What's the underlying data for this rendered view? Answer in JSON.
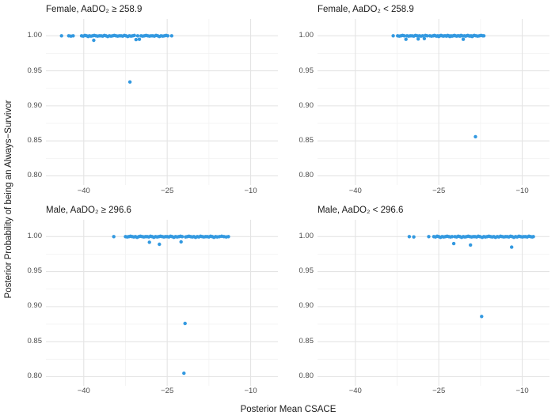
{
  "chart_data": {
    "type": "scatter",
    "layout": "facet-grid-2x2",
    "point_color": "#3399e0",
    "point_radius": 2.2,
    "grid_major_color": "#e4e4e4",
    "grid_minor_color": "#f2f2f2",
    "x_axis": {
      "title": "Posterior Mean CSACE",
      "range": [
        -46.8,
        -5.1
      ],
      "ticks": [
        -40,
        -25,
        -10
      ],
      "tick_labels": [
        "−40",
        "−25",
        "−10"
      ],
      "minor_ticks": [
        -32.5,
        -17.5
      ]
    },
    "y_axis": {
      "title": "Posterior Probability of being an Always−Survivor",
      "range": [
        0.787,
        1.024
      ],
      "ticks": [
        1.0,
        0.95,
        0.9,
        0.85,
        0.8
      ],
      "tick_labels": [
        "1.00",
        "0.95",
        "0.90",
        "0.85",
        "0.80"
      ],
      "minor_ticks": [
        0.975,
        0.925,
        0.875,
        0.825
      ]
    },
    "panels": [
      {
        "title": "Female, AaDO₂ ≥ 258.9",
        "points": [
          [
            -44.0,
            1.0
          ],
          [
            -42.7,
            1.0
          ],
          [
            -42.3,
            0.9995
          ],
          [
            -41.9,
            1.0
          ],
          [
            -40.4,
            1.0
          ],
          [
            -40.1,
            0.9995
          ],
          [
            -39.8,
            1.0005
          ],
          [
            -39.5,
            1.0
          ],
          [
            -39.2,
            0.999
          ],
          [
            -39.0,
            1.0
          ],
          [
            -38.7,
            0.9995
          ],
          [
            -38.4,
            1.0
          ],
          [
            -38.2,
            0.9935
          ],
          [
            -38.1,
            1.0005
          ],
          [
            -37.8,
            1.0
          ],
          [
            -37.5,
            0.9995
          ],
          [
            -37.2,
            1.0
          ],
          [
            -36.9,
            1.0
          ],
          [
            -36.6,
            0.9995
          ],
          [
            -36.3,
            1.0005
          ],
          [
            -36.0,
            1.0
          ],
          [
            -35.7,
            0.999
          ],
          [
            -35.4,
            1.0
          ],
          [
            -35.1,
            0.9995
          ],
          [
            -34.8,
            1.0
          ],
          [
            -34.5,
            1.0005
          ],
          [
            -34.2,
            1.0
          ],
          [
            -33.9,
            0.9995
          ],
          [
            -33.6,
            1.0
          ],
          [
            -33.3,
            1.0
          ],
          [
            -33.0,
            0.9995
          ],
          [
            -32.7,
            1.0005
          ],
          [
            -32.4,
            1.0
          ],
          [
            -32.1,
            0.999
          ],
          [
            -31.8,
            1.0
          ],
          [
            -31.7,
            0.934
          ],
          [
            -31.5,
            0.9995
          ],
          [
            -31.2,
            1.0
          ],
          [
            -30.9,
            1.0005
          ],
          [
            -30.6,
            0.9945
          ],
          [
            -30.3,
            1.0
          ],
          [
            -30.0,
            0.995
          ],
          [
            -29.7,
            1.0
          ],
          [
            -29.4,
            0.9995
          ],
          [
            -29.1,
            1.0
          ],
          [
            -28.8,
            1.0005
          ],
          [
            -28.5,
            1.0
          ],
          [
            -28.2,
            0.9995
          ],
          [
            -27.9,
            1.0
          ],
          [
            -27.6,
            1.0
          ],
          [
            -27.3,
            0.9995
          ],
          [
            -27.0,
            1.0005
          ],
          [
            -26.7,
            1.0
          ],
          [
            -26.4,
            0.999
          ],
          [
            -26.1,
            1.0
          ],
          [
            -25.8,
            0.9995
          ],
          [
            -25.5,
            1.0
          ],
          [
            -25.2,
            1.0005
          ],
          [
            -24.9,
            1.0
          ],
          [
            -24.2,
            1.0
          ]
        ]
      },
      {
        "title": "Female, AaDO₂ < 258.9",
        "points": [
          [
            -33.2,
            1.0
          ],
          [
            -32.4,
            1.0
          ],
          [
            -32.1,
            0.9995
          ],
          [
            -31.8,
            1.0
          ],
          [
            -31.5,
            1.0005
          ],
          [
            -31.2,
            1.0
          ],
          [
            -30.9,
            0.995
          ],
          [
            -30.7,
            1.0
          ],
          [
            -30.4,
            0.9995
          ],
          [
            -30.1,
            1.0
          ],
          [
            -29.8,
            1.0
          ],
          [
            -29.5,
            0.9995
          ],
          [
            -29.2,
            1.0005
          ],
          [
            -28.9,
            1.0
          ],
          [
            -28.7,
            0.9955
          ],
          [
            -28.5,
            1.0
          ],
          [
            -28.2,
            0.9995
          ],
          [
            -27.9,
            1.0
          ],
          [
            -27.6,
            0.996
          ],
          [
            -27.4,
            1.0005
          ],
          [
            -27.1,
            1.0
          ],
          [
            -26.6,
            1.0
          ],
          [
            -26.3,
            0.9995
          ],
          [
            -26.0,
            1.0
          ],
          [
            -25.8,
            1.0005
          ],
          [
            -25.6,
            1.0
          ],
          [
            -25.4,
            0.9995
          ],
          [
            -25.2,
            1.0
          ],
          [
            -25.0,
            0.999
          ],
          [
            -24.8,
            1.0
          ],
          [
            -24.6,
            1.0005
          ],
          [
            -24.4,
            1.0
          ],
          [
            -24.2,
            0.9995
          ],
          [
            -24.0,
            1.0
          ],
          [
            -23.8,
            1.0
          ],
          [
            -23.6,
            0.9995
          ],
          [
            -23.4,
            1.0005
          ],
          [
            -23.2,
            1.0
          ],
          [
            -23.0,
            0.999
          ],
          [
            -22.8,
            1.0
          ],
          [
            -22.6,
            0.9995
          ],
          [
            -22.4,
            1.0
          ],
          [
            -22.2,
            1.0005
          ],
          [
            -22.0,
            1.0
          ],
          [
            -21.8,
            0.9995
          ],
          [
            -21.6,
            1.0
          ],
          [
            -21.4,
            1.0
          ],
          [
            -21.2,
            0.9995
          ],
          [
            -21.0,
            1.0005
          ],
          [
            -20.8,
            1.0
          ],
          [
            -20.6,
            0.995
          ],
          [
            -20.4,
            1.0
          ],
          [
            -20.2,
            0.9995
          ],
          [
            -20.0,
            1.0
          ],
          [
            -19.8,
            1.0005
          ],
          [
            -19.6,
            1.0
          ],
          [
            -19.4,
            0.9995
          ],
          [
            -19.2,
            1.0
          ],
          [
            -19.0,
            0.999
          ],
          [
            -18.8,
            1.0
          ],
          [
            -18.6,
            1.0005
          ],
          [
            -18.4,
            0.856
          ],
          [
            -18.3,
            1.0
          ],
          [
            -18.0,
            0.9995
          ],
          [
            -17.7,
            1.0
          ],
          [
            -17.4,
            1.0005
          ],
          [
            -17.1,
            1.0
          ],
          [
            -16.9,
            1.0
          ]
        ]
      },
      {
        "title": "Male, AaDO₂ ≥ 296.6",
        "points": [
          [
            -34.6,
            1.0
          ],
          [
            -32.5,
            1.0
          ],
          [
            -32.2,
            0.9995
          ],
          [
            -31.9,
            1.0
          ],
          [
            -31.6,
            1.0005
          ],
          [
            -31.3,
            1.0
          ],
          [
            -31.0,
            0.9995
          ],
          [
            -30.7,
            1.0
          ],
          [
            -30.4,
            0.999
          ],
          [
            -30.1,
            1.0
          ],
          [
            -29.8,
            1.0005
          ],
          [
            -29.5,
            1.0
          ],
          [
            -29.2,
            0.9995
          ],
          [
            -28.9,
            1.0
          ],
          [
            -28.6,
            1.0
          ],
          [
            -28.3,
            0.9995
          ],
          [
            -28.2,
            0.992
          ],
          [
            -28.0,
            1.0005
          ],
          [
            -27.7,
            1.0
          ],
          [
            -27.4,
            0.999
          ],
          [
            -27.1,
            1.0
          ],
          [
            -26.8,
            0.9995
          ],
          [
            -26.5,
            1.0
          ],
          [
            -26.4,
            0.989
          ],
          [
            -26.2,
            1.0005
          ],
          [
            -25.9,
            1.0
          ],
          [
            -25.6,
            0.9995
          ],
          [
            -25.3,
            1.0
          ],
          [
            -25.0,
            1.0
          ],
          [
            -24.7,
            0.9995
          ],
          [
            -24.4,
            1.0005
          ],
          [
            -24.1,
            1.0
          ],
          [
            -23.8,
            0.999
          ],
          [
            -23.5,
            1.0
          ],
          [
            -23.2,
            0.9995
          ],
          [
            -22.9,
            1.0
          ],
          [
            -22.6,
            1.0005
          ],
          [
            -22.5,
            0.9925
          ],
          [
            -22.3,
            1.0
          ],
          [
            -22.0,
            0.805
          ],
          [
            -21.8,
            0.876
          ],
          [
            -21.7,
            0.9995
          ],
          [
            -21.4,
            1.0
          ],
          [
            -21.1,
            1.0005
          ],
          [
            -20.8,
            1.0
          ],
          [
            -20.5,
            0.9995
          ],
          [
            -20.2,
            1.0
          ],
          [
            -19.9,
            0.999
          ],
          [
            -19.6,
            1.0
          ],
          [
            -19.3,
            0.9995
          ],
          [
            -19.0,
            1.0005
          ],
          [
            -18.7,
            1.0
          ],
          [
            -18.4,
            0.9995
          ],
          [
            -18.1,
            1.0
          ],
          [
            -17.8,
            1.0
          ],
          [
            -17.5,
            0.9995
          ],
          [
            -17.2,
            1.0005
          ],
          [
            -16.9,
            1.0
          ],
          [
            -16.6,
            0.999
          ],
          [
            -16.3,
            1.0
          ],
          [
            -16.0,
            0.9995
          ],
          [
            -15.6,
            1.0
          ],
          [
            -15.2,
            1.0005
          ],
          [
            -14.8,
            1.0
          ],
          [
            -14.4,
            0.9995
          ],
          [
            -14.0,
            1.0
          ]
        ]
      },
      {
        "title": "Male, AaDO₂ < 296.6",
        "points": [
          [
            -30.3,
            1.0
          ],
          [
            -29.5,
            0.9995
          ],
          [
            -26.8,
            1.0
          ],
          [
            -25.9,
            1.0
          ],
          [
            -25.6,
            0.9995
          ],
          [
            -25.3,
            1.0005
          ],
          [
            -25.0,
            1.0
          ],
          [
            -24.7,
            0.999
          ],
          [
            -24.4,
            1.0
          ],
          [
            -24.1,
            0.9995
          ],
          [
            -23.8,
            1.0
          ],
          [
            -23.5,
            1.0005
          ],
          [
            -23.2,
            1.0
          ],
          [
            -22.9,
            0.9995
          ],
          [
            -22.6,
            1.0
          ],
          [
            -22.3,
            0.99
          ],
          [
            -22.1,
            1.0
          ],
          [
            -21.8,
            0.9995
          ],
          [
            -21.5,
            1.0005
          ],
          [
            -21.2,
            1.0
          ],
          [
            -20.9,
            0.999
          ],
          [
            -20.6,
            1.0
          ],
          [
            -20.3,
            0.9995
          ],
          [
            -20.0,
            1.0
          ],
          [
            -19.7,
            1.0005
          ],
          [
            -19.4,
            1.0
          ],
          [
            -19.3,
            0.988
          ],
          [
            -19.1,
            0.9995
          ],
          [
            -18.8,
            1.0
          ],
          [
            -18.5,
            1.0
          ],
          [
            -18.2,
            0.9995
          ],
          [
            -17.9,
            1.0005
          ],
          [
            -17.6,
            1.0
          ],
          [
            -17.3,
            0.886
          ],
          [
            -17.2,
            0.999
          ],
          [
            -16.9,
            1.0
          ],
          [
            -16.6,
            0.9995
          ],
          [
            -16.3,
            1.0
          ],
          [
            -16.0,
            1.0005
          ],
          [
            -15.7,
            1.0
          ],
          [
            -15.4,
            0.9995
          ],
          [
            -15.1,
            1.0
          ],
          [
            -14.8,
            0.999
          ],
          [
            -14.5,
            1.0
          ],
          [
            -14.2,
            0.9995
          ],
          [
            -13.9,
            1.0005
          ],
          [
            -13.6,
            1.0
          ],
          [
            -13.3,
            0.9995
          ],
          [
            -13.0,
            1.0
          ],
          [
            -12.7,
            1.0
          ],
          [
            -12.4,
            0.9995
          ],
          [
            -12.1,
            1.0005
          ],
          [
            -11.9,
            0.985
          ],
          [
            -11.8,
            1.0
          ],
          [
            -11.5,
            0.999
          ],
          [
            -11.2,
            1.0
          ],
          [
            -10.9,
            0.9995
          ],
          [
            -10.6,
            1.0005
          ],
          [
            -10.3,
            1.0
          ],
          [
            -10.0,
            0.9995
          ],
          [
            -9.7,
            1.0
          ],
          [
            -9.4,
            1.0
          ],
          [
            -9.1,
            0.9995
          ],
          [
            -8.8,
            1.0005
          ],
          [
            -8.5,
            1.0
          ],
          [
            -8.2,
            0.9995
          ],
          [
            -8.0,
            1.0
          ]
        ]
      }
    ]
  }
}
